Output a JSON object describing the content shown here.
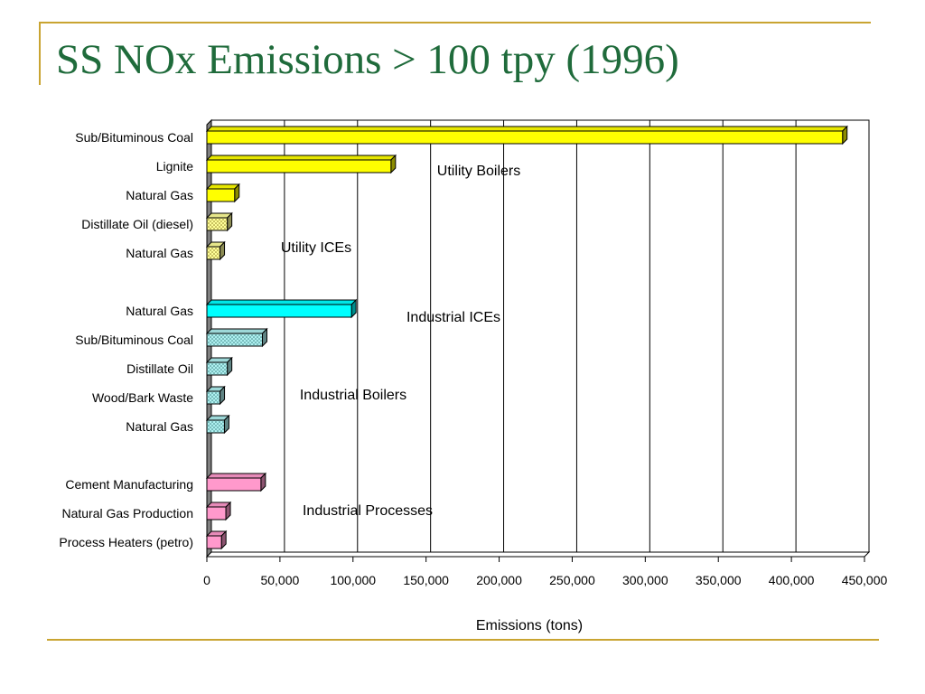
{
  "slide": {
    "title": "SS NOx Emissions > 100 tpy (1996)",
    "title_color": "#1f6b3b",
    "rule_color": "#c9a431"
  },
  "chart_data": {
    "type": "bar",
    "orientation": "horizontal",
    "title": "",
    "xlabel": "Emissions (tons)",
    "ylabel": "",
    "xlim": [
      0,
      450000
    ],
    "xticks": [
      0,
      50000,
      100000,
      150000,
      200000,
      250000,
      300000,
      350000,
      400000,
      450000
    ],
    "grid": "vertical",
    "legend": "none",
    "categories": [
      "Sub/Bituminous Coal",
      "Lignite",
      "Natural Gas",
      "Distillate Oil (diesel)",
      "Natural Gas",
      "Natural Gas",
      "Sub/Bituminous Coal",
      "Distillate Oil",
      "Wood/Bark Waste",
      "Natural Gas",
      "Cement Manufacturing",
      "Natural Gas Production",
      "Process Heaters (petro)"
    ],
    "values": [
      435000,
      126000,
      19000,
      14000,
      9000,
      99000,
      38000,
      14000,
      9000,
      12000,
      37000,
      13000,
      10000
    ],
    "bar_colors": [
      "#ffff00",
      "#ffff00",
      "#ffff00",
      "#ffff99",
      "#ffff99",
      "#00ffff",
      "#aef0f0",
      "#aef0f0",
      "#aef0f0",
      "#aef0f0",
      "#ff99cc",
      "#ff99cc",
      "#ff99cc"
    ],
    "bar_patterns": [
      "solid",
      "solid",
      "solid",
      "dotted",
      "dotted",
      "solid",
      "dotted",
      "dotted",
      "dotted",
      "dotted",
      "solid",
      "solid",
      "solid"
    ],
    "annotations": [
      "Utility Boilers",
      "Utility ICEs",
      "Industrial ICEs",
      "Industrial Boilers",
      "Industrial Processes"
    ]
  }
}
